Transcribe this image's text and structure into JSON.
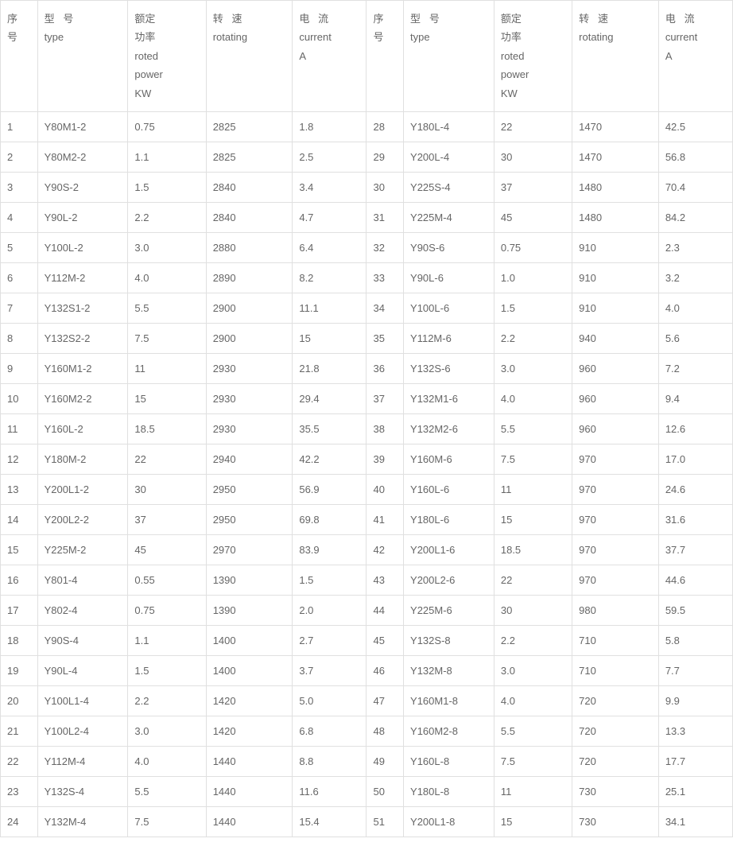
{
  "headers": {
    "seq": "序\n号",
    "type": "型   号\ntype",
    "power": "额定\n功率\nroted\npower\nKW",
    "rot": "转   速\nrotating",
    "cur": "电   流\ncurrent\nA"
  },
  "style": {
    "font_size": 13,
    "text_color": "#666666",
    "border_color": "#e0e0e0",
    "background": "#ffffff"
  },
  "rows": [
    {
      "l": [
        "1",
        "Y80M1-2",
        "0.75",
        "2825",
        "1.8"
      ],
      "r": [
        "28",
        "Y180L-4",
        "22",
        "1470",
        "42.5"
      ]
    },
    {
      "l": [
        "2",
        "Y80M2-2",
        "1.1",
        "2825",
        "2.5"
      ],
      "r": [
        "29",
        "Y200L-4",
        "30",
        "1470",
        "56.8"
      ]
    },
    {
      "l": [
        "3",
        "Y90S-2",
        "1.5",
        "2840",
        "3.4"
      ],
      "r": [
        "30",
        "Y225S-4",
        "37",
        "1480",
        "70.4"
      ]
    },
    {
      "l": [
        "4",
        "Y90L-2",
        "2.2",
        "2840",
        "4.7"
      ],
      "r": [
        "31",
        "Y225M-4",
        "45",
        "1480",
        "84.2"
      ]
    },
    {
      "l": [
        "5",
        "Y100L-2",
        "3.0",
        "2880",
        "6.4"
      ],
      "r": [
        "32",
        "Y90S-6",
        "0.75",
        "910",
        "2.3"
      ]
    },
    {
      "l": [
        "6",
        "Y112M-2",
        "4.0",
        "2890",
        "8.2"
      ],
      "r": [
        "33",
        "Y90L-6",
        "1.0",
        "910",
        "3.2"
      ]
    },
    {
      "l": [
        "7",
        "Y132S1-2",
        "5.5",
        "2900",
        "11.1"
      ],
      "r": [
        "34",
        "Y100L-6",
        "1.5",
        "910",
        "4.0"
      ]
    },
    {
      "l": [
        "8",
        "Y132S2-2",
        "7.5",
        "2900",
        "15"
      ],
      "r": [
        "35",
        "Y112M-6",
        "2.2",
        "940",
        "5.6"
      ]
    },
    {
      "l": [
        "9",
        "Y160M1-2",
        "11",
        "2930",
        "21.8"
      ],
      "r": [
        "36",
        "Y132S-6",
        "3.0",
        "960",
        "7.2"
      ]
    },
    {
      "l": [
        "10",
        "Y160M2-2",
        "15",
        "2930",
        "29.4"
      ],
      "r": [
        "37",
        "Y132M1-6",
        "4.0",
        "960",
        "9.4"
      ]
    },
    {
      "l": [
        "11",
        "Y160L-2",
        "18.5",
        "2930",
        "35.5"
      ],
      "r": [
        "38",
        "Y132M2-6",
        "5.5",
        "960",
        "12.6"
      ]
    },
    {
      "l": [
        "12",
        "Y180M-2",
        "22",
        "2940",
        "42.2"
      ],
      "r": [
        "39",
        "Y160M-6",
        "7.5",
        "970",
        "17.0"
      ]
    },
    {
      "l": [
        "13",
        "Y200L1-2",
        "30",
        "2950",
        "56.9"
      ],
      "r": [
        "40",
        "Y160L-6",
        "11",
        "970",
        "24.6"
      ]
    },
    {
      "l": [
        "14",
        "Y200L2-2",
        "37",
        "2950",
        "69.8"
      ],
      "r": [
        "41",
        "Y180L-6",
        "15",
        "970",
        "31.6"
      ]
    },
    {
      "l": [
        "15",
        "Y225M-2",
        "45",
        "2970",
        "83.9"
      ],
      "r": [
        "42",
        "Y200L1-6",
        "18.5",
        "970",
        "37.7"
      ]
    },
    {
      "l": [
        "16",
        "Y801-4",
        "0.55",
        "1390",
        "1.5"
      ],
      "r": [
        "43",
        "Y200L2-6",
        "22",
        "970",
        "44.6"
      ]
    },
    {
      "l": [
        "17",
        "Y802-4",
        "0.75",
        "1390",
        "2.0"
      ],
      "r": [
        "44",
        "Y225M-6",
        "30",
        "980",
        "59.5"
      ]
    },
    {
      "l": [
        "18",
        "Y90S-4",
        "1.1",
        "1400",
        "2.7"
      ],
      "r": [
        "45",
        "Y132S-8",
        "2.2",
        "710",
        "5.8"
      ]
    },
    {
      "l": [
        "19",
        "Y90L-4",
        "1.5",
        "1400",
        "3.7"
      ],
      "r": [
        "46",
        "Y132M-8",
        "3.0",
        "710",
        "7.7"
      ]
    },
    {
      "l": [
        "20",
        "Y100L1-4",
        "2.2",
        "1420",
        "5.0"
      ],
      "r": [
        "47",
        "Y160M1-8",
        "4.0",
        "720",
        "9.9"
      ]
    },
    {
      "l": [
        "21",
        "Y100L2-4",
        "3.0",
        "1420",
        "6.8"
      ],
      "r": [
        "48",
        "Y160M2-8",
        "5.5",
        "720",
        "13.3"
      ]
    },
    {
      "l": [
        "22",
        "Y112M-4",
        "4.0",
        "1440",
        "8.8"
      ],
      "r": [
        "49",
        "Y160L-8",
        "7.5",
        "720",
        "17.7"
      ]
    },
    {
      "l": [
        "23",
        "Y132S-4",
        "5.5",
        "1440",
        "11.6"
      ],
      "r": [
        "50",
        "Y180L-8",
        "11",
        "730",
        "25.1"
      ]
    },
    {
      "l": [
        "24",
        "Y132M-4",
        "7.5",
        "1440",
        "15.4"
      ],
      "r": [
        "51",
        "Y200L1-8",
        "15",
        "730",
        "34.1"
      ]
    }
  ]
}
